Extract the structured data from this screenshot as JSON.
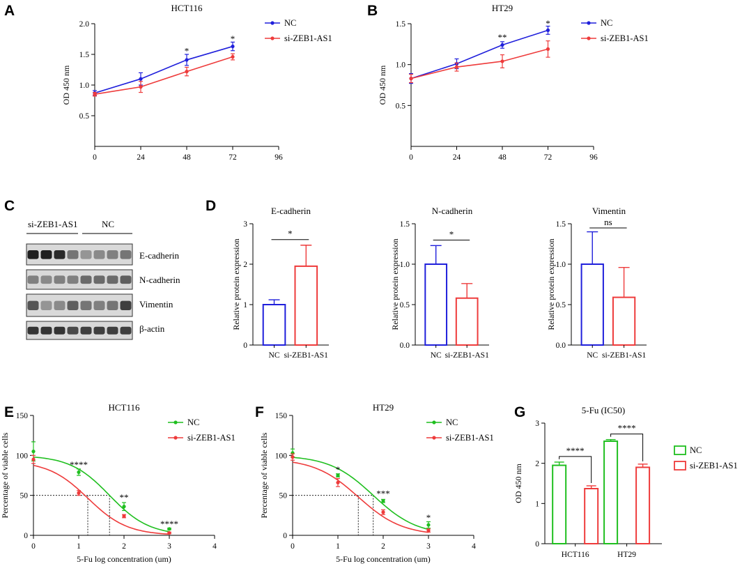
{
  "colors": {
    "nc_blue": "#1f1fdb",
    "si_red": "#ee3b3b",
    "nc_green": "#1fbf1f",
    "black": "#000000"
  },
  "chart_data": [
    {
      "panel": "A",
      "type": "line",
      "title": "HCT116",
      "xlabel": "",
      "ylabel": "OD 450 nm",
      "xlim": [
        0,
        96
      ],
      "ylim": [
        0,
        2.0
      ],
      "xticks": [
        "0",
        "24",
        "48",
        "72",
        "96"
      ],
      "yticks": [
        "0.5",
        "1.0",
        "1.5",
        "2.0"
      ],
      "series": [
        {
          "name": "NC",
          "color": "#1f1fdb",
          "x": [
            0,
            24,
            48,
            72
          ],
          "y": [
            0.87,
            1.1,
            1.41,
            1.63
          ],
          "err": [
            0.04,
            0.1,
            0.09,
            0.07
          ]
        },
        {
          "name": "si-ZEB1-AS1",
          "color": "#ee3b3b",
          "x": [
            0,
            24,
            48,
            72
          ],
          "y": [
            0.85,
            0.97,
            1.22,
            1.46
          ],
          "err": [
            0.03,
            0.09,
            0.07,
            0.05
          ]
        }
      ],
      "annotations": [
        {
          "x": 48,
          "y": 1.55,
          "text": "*"
        },
        {
          "x": 72,
          "y": 1.75,
          "text": "*"
        }
      ],
      "legend": [
        "NC",
        "si-ZEB1-AS1"
      ]
    },
    {
      "panel": "B",
      "type": "line",
      "title": "HT29",
      "xlabel": "",
      "ylabel": "OD 450 nm",
      "xlim": [
        0,
        96
      ],
      "ylim": [
        0,
        1.5
      ],
      "xticks": [
        "0",
        "24",
        "48",
        "72",
        "96"
      ],
      "yticks": [
        "0.5",
        "1.0",
        "1.5"
      ],
      "series": [
        {
          "name": "NC",
          "color": "#1f1fdb",
          "x": [
            0,
            24,
            48,
            72
          ],
          "y": [
            0.83,
            1.01,
            1.24,
            1.42
          ],
          "err": [
            0.06,
            0.06,
            0.04,
            0.05
          ]
        },
        {
          "name": "si-ZEB1-AS1",
          "color": "#ee3b3b",
          "x": [
            0,
            24,
            48,
            72
          ],
          "y": [
            0.83,
            0.97,
            1.04,
            1.19
          ],
          "err": [
            0.05,
            0.05,
            0.08,
            0.1
          ]
        }
      ],
      "annotations": [
        {
          "x": 48,
          "y": 1.33,
          "text": "**"
        },
        {
          "x": 72,
          "y": 1.5,
          "text": "*"
        }
      ],
      "legend": [
        "NC",
        "si-ZEB1-AS1"
      ]
    },
    {
      "panel": "D1",
      "type": "bar",
      "title": "E-cadherin",
      "ylabel": "Relative protein expression",
      "categories": [
        "NC",
        "si-ZEB1-AS1"
      ],
      "values": [
        1.0,
        1.95
      ],
      "err": [
        0.12,
        0.52
      ],
      "colors": [
        "#1f1fdb",
        "#ee3b3b"
      ],
      "ylim": [
        0,
        3
      ],
      "yticks": [
        "0",
        "1",
        "2",
        "3"
      ],
      "significance": "*"
    },
    {
      "panel": "D2",
      "type": "bar",
      "title": "N-cadherin",
      "ylabel": "Relative protein expression",
      "categories": [
        "NC",
        "si-ZEB1-AS1"
      ],
      "values": [
        1.0,
        0.58
      ],
      "err": [
        0.23,
        0.18
      ],
      "colors": [
        "#1f1fdb",
        "#ee3b3b"
      ],
      "ylim": [
        0,
        1.5
      ],
      "yticks": [
        "0.0",
        "0.5",
        "1.0",
        "1.5"
      ],
      "significance": "*"
    },
    {
      "panel": "D3",
      "type": "bar",
      "title": "Vimentin",
      "ylabel": "Relative protein expression",
      "categories": [
        "NC",
        "si-ZEB1-AS1"
      ],
      "values": [
        1.0,
        0.59
      ],
      "err": [
        0.4,
        0.37
      ],
      "colors": [
        "#1f1fdb",
        "#ee3b3b"
      ],
      "ylim": [
        0,
        1.5
      ],
      "yticks": [
        "0.0",
        "0.5",
        "1.0",
        "1.5"
      ],
      "significance": "ns"
    },
    {
      "panel": "E",
      "type": "scatter",
      "title": "HCT116",
      "xlabel": "5-Fu log concentration (um)",
      "ylabel": "Percentage of viable cells",
      "xlim": [
        0,
        4
      ],
      "ylim": [
        0,
        150
      ],
      "xticks": [
        "0",
        "1",
        "2",
        "3",
        "4"
      ],
      "yticks": [
        "0",
        "50",
        "100",
        "150"
      ],
      "series": [
        {
          "name": "NC",
          "color": "#1fbf1f",
          "x": [
            0,
            1,
            2,
            3
          ],
          "y": [
            105,
            79,
            36,
            8
          ],
          "err": [
            12,
            4,
            5,
            1
          ],
          "fit": {
            "top": 100,
            "ic50": 1.68,
            "hill": 1.0
          }
        },
        {
          "name": "si-ZEB1-AS1",
          "color": "#ee3b3b",
          "x": [
            0,
            1,
            2,
            3
          ],
          "y": [
            95,
            53,
            24,
            3
          ],
          "err": [
            5,
            3,
            2,
            1
          ],
          "fit": {
            "top": 93,
            "ic50": 1.2,
            "hill": 1.0
          }
        }
      ],
      "ic50_lines": [
        1.2,
        1.68
      ],
      "ic50_level": 50,
      "annotations": [
        {
          "x": 1,
          "y": 88,
          "text": "****"
        },
        {
          "x": 2,
          "y": 47,
          "text": "**"
        },
        {
          "x": 3,
          "y": 14,
          "text": "****"
        }
      ],
      "legend": [
        "NC",
        "si-ZEB1-AS1"
      ]
    },
    {
      "panel": "F",
      "type": "scatter",
      "title": "HT29",
      "xlabel": "5-Fu log concentration (um)",
      "ylabel": "Percentage of viable cells",
      "xlim": [
        0,
        4
      ],
      "ylim": [
        0,
        150
      ],
      "xticks": [
        "0",
        "1",
        "2",
        "3",
        "4"
      ],
      "yticks": [
        "0",
        "50",
        "100",
        "150"
      ],
      "series": [
        {
          "name": "NC",
          "color": "#1fbf1f",
          "x": [
            0,
            1,
            2,
            3
          ],
          "y": [
            103,
            75,
            43,
            13
          ],
          "err": [
            5,
            2,
            2,
            4
          ],
          "fit": {
            "top": 100,
            "ic50": 1.78,
            "hill": 0.9
          }
        },
        {
          "name": "si-ZEB1-AS1",
          "color": "#ee3b3b",
          "x": [
            0,
            1,
            2,
            3
          ],
          "y": [
            98,
            66,
            29,
            6
          ],
          "err": [
            4,
            5,
            3,
            2
          ],
          "fit": {
            "top": 96,
            "ic50": 1.45,
            "hill": 0.9
          }
        }
      ],
      "ic50_lines": [
        1.45,
        1.78
      ],
      "ic50_level": 50,
      "annotations": [
        {
          "x": 1,
          "y": 82,
          "text": "*"
        },
        {
          "x": 2,
          "y": 52,
          "text": "***"
        },
        {
          "x": 3,
          "y": 22,
          "text": "*"
        }
      ],
      "legend": [
        "NC",
        "si-ZEB1-AS1"
      ]
    },
    {
      "panel": "G",
      "type": "bar",
      "title": "5-Fu (IC50)",
      "ylabel": "OD 450 nm",
      "categories": [
        "HCT116",
        "HT29"
      ],
      "series": [
        {
          "name": "NC",
          "color": "#1fbf1f",
          "values": [
            1.95,
            2.55
          ],
          "err": [
            0.08,
            0.04
          ]
        },
        {
          "name": "si-ZEB1-AS1",
          "color": "#ee3b3b",
          "values": [
            1.37,
            1.9
          ],
          "err": [
            0.07,
            0.08
          ]
        }
      ],
      "ylim": [
        0,
        3
      ],
      "yticks": [
        "0",
        "1",
        "2",
        "3"
      ],
      "significance": [
        "****",
        "****"
      ],
      "legend": [
        "NC",
        "si-ZEB1-AS1"
      ]
    }
  ],
  "western_blot": {
    "panel": "C",
    "group_labels": [
      "si-ZEB1-AS1",
      "NC"
    ],
    "bands": [
      "E-cadherin",
      "N-cadherin",
      "Vimentin",
      "β-actin"
    ]
  },
  "panel_letters": {
    "a": "A",
    "b": "B",
    "c": "C",
    "d": "D",
    "e": "E",
    "f": "F",
    "g": "G"
  }
}
